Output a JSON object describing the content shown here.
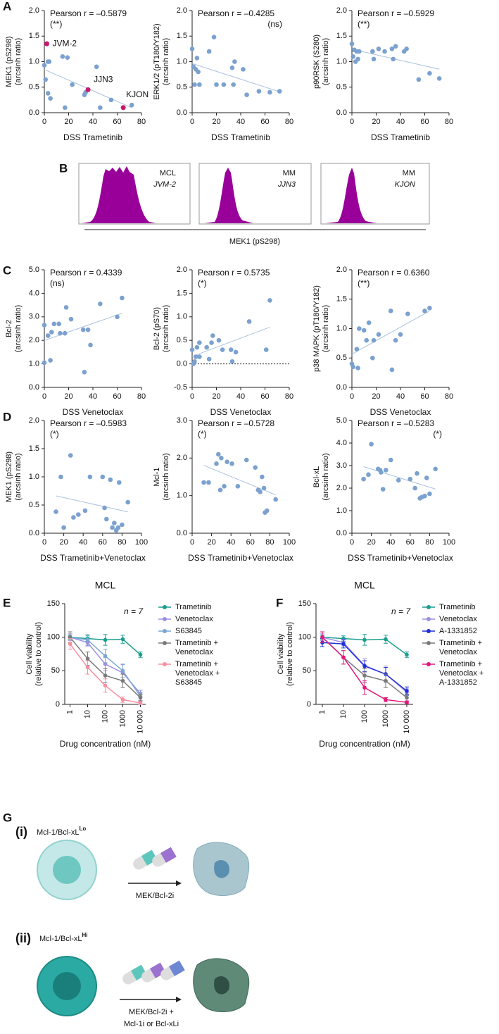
{
  "panel_labels": [
    "A",
    "B",
    "C",
    "D",
    "E",
    "F",
    "G"
  ],
  "chart_data": [
    {
      "type": "scatter",
      "xlabel": "DSS Trametinib",
      "ylabel": [
        "MEK1 (pS298)",
        "(arcsinh ratio)"
      ],
      "annotation": "Pearson r = –0.5879",
      "significance": "(**)",
      "color": "#7ba1cf",
      "x": [
        0,
        1,
        3,
        4,
        3,
        5,
        15,
        19,
        23,
        17,
        33,
        34,
        43,
        46,
        55,
        72
      ],
      "values": [
        0.93,
        0.65,
        1.0,
        1.0,
        0.38,
        0.28,
        1.1,
        1.08,
        0.55,
        0.1,
        0.35,
        0.4,
        0.9,
        0.1,
        0.25,
        0.15
      ],
      "highlights": [
        {
          "label": "JVM-2",
          "x": 2,
          "y": 1.35,
          "color": "#c8186e"
        },
        {
          "label": "JJN3",
          "x": 36,
          "y": 0.45,
          "color": "#c8186e"
        },
        {
          "label": "KJON",
          "x": 65,
          "y": 0.1,
          "color": "#c8186e"
        }
      ],
      "xlim": [
        0,
        80
      ],
      "xticks": [
        0,
        20,
        40,
        60,
        80
      ],
      "ylim": [
        0,
        2
      ],
      "yticks": [
        {
          "value": 0,
          "label": "0.0"
        },
        0.5,
        {
          "value": 1,
          "label": "1.0"
        },
        1.5,
        {
          "value": 2,
          "label": "2.0"
        }
      ]
    },
    {
      "type": "scatter",
      "xlabel": "DSS Trametinib",
      "ylabel": [
        "ERK1/2 (pT180/Y182)",
        "(arcsinh ratio)"
      ],
      "annotation": "Pearson r = –0.4285",
      "significance": "(ns)",
      "color": "#7ba1cf",
      "x": [
        0,
        1,
        2,
        3,
        4,
        5,
        6,
        14,
        18,
        20,
        26,
        33,
        35,
        34,
        42,
        45,
        55,
        64,
        72
      ],
      "values": [
        1.25,
        0.9,
        0.55,
        0.85,
        1.07,
        0.8,
        0.55,
        1.2,
        1.48,
        0.55,
        0.55,
        0.88,
        1.0,
        0.55,
        0.85,
        0.35,
        0.42,
        0.4,
        0.42
      ],
      "xlim": [
        0,
        80
      ],
      "xticks": [
        0,
        20,
        40,
        60,
        80
      ],
      "ylim": [
        0,
        2
      ],
      "yticks": [
        {
          "value": 0,
          "label": "0.0"
        },
        0.5,
        {
          "value": 1,
          "label": "1.0"
        },
        1.5,
        {
          "value": 2,
          "label": "2.0"
        }
      ]
    },
    {
      "type": "scatter",
      "xlabel": "DSS Trametinib",
      "ylabel": [
        "p90RSK (S280)",
        "(arcsinh ratio)"
      ],
      "annotation": "Pearson r = –0.5929",
      "significance": "(**)",
      "color": "#7ba1cf",
      "x": [
        0,
        1,
        2,
        3,
        4,
        5,
        6,
        17,
        18,
        22,
        27,
        33,
        34,
        36,
        43,
        45,
        55,
        64,
        72
      ],
      "values": [
        1.35,
        1.1,
        1.23,
        1.0,
        1.2,
        1.05,
        1.2,
        1.2,
        1.05,
        1.25,
        1.2,
        1.25,
        1.05,
        1.3,
        1.2,
        1.25,
        0.65,
        0.77,
        0.67
      ],
      "xlim": [
        0,
        80
      ],
      "xticks": [
        0,
        20,
        40,
        60,
        80
      ],
      "ylim": [
        0,
        2
      ],
      "yticks": [
        {
          "value": 0,
          "label": "0.0"
        },
        0.5,
        {
          "value": 1,
          "label": "1.0"
        },
        1.5,
        {
          "value": 2,
          "label": "2.0"
        }
      ]
    },
    {
      "type": "scatter",
      "xlabel": "DSS Venetoclax",
      "ylabel": [
        "Bcl-2",
        "(arcsinh ratio)"
      ],
      "annotation": "Pearson r = 0.4339",
      "significance": "(ns)",
      "color": "#7ba1cf",
      "x": [
        0,
        0,
        3,
        5,
        6,
        8,
        12,
        13,
        17,
        18,
        22,
        32,
        33,
        36,
        38,
        46,
        60,
        64
      ],
      "values": [
        2.65,
        1.05,
        2.2,
        1.15,
        2.35,
        2.7,
        2.7,
        2.3,
        2.3,
        3.4,
        2.9,
        2.45,
        0.65,
        2.45,
        1.8,
        3.55,
        3.0,
        3.8
      ],
      "xlim": [
        0,
        80
      ],
      "xticks": [
        0,
        20,
        40,
        60,
        80
      ],
      "ylim": [
        0,
        5
      ],
      "yticks": [
        {
          "value": 0,
          "label": "0.0"
        },
        {
          "value": 1,
          "label": "1.0"
        },
        {
          "value": 2,
          "label": "2.0"
        },
        {
          "value": 3,
          "label": "3.0"
        },
        {
          "value": 4,
          "label": "4.0"
        },
        {
          "value": 5,
          "label": "5.0"
        }
      ]
    },
    {
      "type": "scatter",
      "xlabel": "DSS Venetoclax",
      "ylabel": [
        "Bcl-2 (pS70)",
        "(arcsinh ratio)"
      ],
      "annotation": "Pearson r = 0.5735",
      "significance": "(*)",
      "color": "#7ba1cf",
      "hline": 0,
      "x": [
        0,
        1,
        2,
        3,
        4,
        6,
        6,
        12,
        14,
        16,
        17,
        22,
        25,
        32,
        33,
        36,
        47,
        61,
        64
      ],
      "values": [
        0.3,
        0.0,
        0.05,
        0.15,
        0.35,
        0.45,
        0.15,
        0.35,
        0.1,
        0.45,
        0.6,
        0.5,
        0.3,
        0.3,
        0.05,
        0.25,
        0.9,
        0.3,
        1.35
      ],
      "xlim": [
        0,
        80
      ],
      "xticks": [
        0,
        20,
        40,
        60,
        80
      ],
      "ylim": [
        -0.5,
        2
      ],
      "yticks": [
        -0.5,
        {
          "value": 0,
          "label": "0.0"
        },
        0.5,
        {
          "value": 1,
          "label": "1.0"
        },
        1.5,
        {
          "value": 2,
          "label": "2.0"
        }
      ]
    },
    {
      "type": "scatter",
      "xlabel": "DSS Venetoclax",
      "ylabel": [
        "p38 MAPK (pT180/Y182)",
        "(arcsinh ratio)"
      ],
      "annotation": "Pearson r = 0.6360",
      "significance": "(**)",
      "color": "#7ba1cf",
      "x": [
        0,
        1,
        4,
        5,
        6,
        10,
        12,
        14,
        17,
        18,
        22,
        32,
        33,
        36,
        40,
        46,
        60,
        64
      ],
      "values": [
        0.4,
        0.35,
        0.65,
        0.33,
        1.0,
        0.97,
        0.8,
        1.1,
        0.5,
        0.8,
        0.9,
        1.3,
        0.3,
        0.8,
        0.9,
        1.25,
        1.3,
        1.35
      ],
      "xlim": [
        0,
        80
      ],
      "xticks": [
        0,
        20,
        40,
        60,
        80
      ],
      "ylim": [
        0,
        2
      ],
      "yticks": [
        {
          "value": 0,
          "label": "0.0"
        },
        0.5,
        {
          "value": 1,
          "label": "1.0"
        },
        1.5,
        {
          "value": 2,
          "label": "2.0"
        }
      ]
    },
    {
      "type": "scatter",
      "xlabel": "DSS Trametinib+Venetoclax",
      "ylabel": [
        "MEK1 (pS298)",
        "(arcsinh ratio)"
      ],
      "annotation": "Pearson r = –0.5983",
      "significance": "(*)",
      "color": "#7ba1cf",
      "x": [
        12,
        17,
        20,
        27,
        30,
        35,
        42,
        47,
        60,
        62,
        64,
        68,
        70,
        72,
        74,
        76,
        77,
        80,
        86
      ],
      "values": [
        0.38,
        1.0,
        0.1,
        1.38,
        0.28,
        0.33,
        0.4,
        1.0,
        1.0,
        0.45,
        0.25,
        0.95,
        0.1,
        0.18,
        0.05,
        0.1,
        0.9,
        0.15,
        0.55
      ],
      "xlim": [
        0,
        100
      ],
      "xticks": [
        0,
        20,
        40,
        60,
        80,
        100
      ],
      "ylim": [
        0,
        2
      ],
      "yticks": [
        {
          "value": 0,
          "label": "0.0"
        },
        0.5,
        {
          "value": 1,
          "label": "1.0"
        },
        1.5,
        {
          "value": 2,
          "label": "2.0"
        }
      ]
    },
    {
      "type": "scatter",
      "xlabel": "DSS Trametinib+Venetoclax",
      "ylabel": [
        "Mcl-1",
        "(arcsinh ratio)"
      ],
      "annotation": "Pearson r = –0.5728",
      "significance": "(*)",
      "color": "#7ba1cf",
      "x": [
        12,
        17,
        25,
        27,
        29,
        30,
        33,
        36,
        41,
        47,
        56,
        65,
        68,
        70,
        72,
        74,
        75,
        77,
        86
      ],
      "values": [
        1.35,
        1.35,
        1.85,
        2.1,
        1.15,
        2.0,
        1.25,
        1.9,
        1.85,
        1.25,
        1.95,
        1.75,
        1.15,
        1.1,
        1.5,
        1.2,
        0.55,
        0.6,
        0.9
      ],
      "xlim": [
        0,
        100
      ],
      "xticks": [
        0,
        20,
        40,
        60,
        80,
        100
      ],
      "ylim": [
        0,
        3
      ],
      "yticks": [
        {
          "value": 0,
          "label": "0.0"
        },
        {
          "value": 1,
          "label": "1.0"
        },
        {
          "value": 2,
          "label": "2.0"
        },
        {
          "value": 3,
          "label": "3.0"
        }
      ]
    },
    {
      "type": "scatter",
      "xlabel": "DSS Trametinib+Venetoclax",
      "ylabel": [
        "Bcl-xL",
        "(arcsinh ratio)"
      ],
      "annotation": "Pearson r = –0.5283",
      "significance": "(*)",
      "color": "#7ba1cf",
      "x": [
        12,
        17,
        20,
        27,
        29,
        30,
        32,
        35,
        40,
        48,
        60,
        65,
        67,
        70,
        72,
        75,
        77,
        80,
        86
      ],
      "values": [
        2.4,
        2.6,
        3.95,
        2.85,
        2.8,
        2.7,
        1.95,
        2.8,
        3.25,
        2.35,
        2.4,
        2.0,
        2.65,
        1.55,
        1.6,
        1.65,
        2.45,
        1.75,
        2.85
      ],
      "xlim": [
        0,
        100
      ],
      "xticks": [
        0,
        20,
        40,
        60,
        80,
        100
      ],
      "ylim": [
        0,
        5
      ],
      "yticks": [
        {
          "value": 0,
          "label": "0.0"
        },
        {
          "value": 1,
          "label": "1.0"
        },
        {
          "value": 2,
          "label": "2.0"
        },
        {
          "value": 3,
          "label": "3.0"
        },
        {
          "value": 4,
          "label": "4.0"
        },
        {
          "value": 5,
          "label": "5.0"
        }
      ]
    },
    {
      "type": "line",
      "title": "MCL",
      "annotation": "n = 7",
      "xlabel": "Drug concentration (nM)",
      "ylabel": [
        "Cell viability",
        "(relative to control)"
      ],
      "x": [
        1,
        10,
        100,
        1000,
        10000
      ],
      "xlog": true,
      "xlim": [
        0.5,
        20000
      ],
      "xticks": [
        1,
        10,
        100,
        1000,
        {
          "value": 10000,
          "label": "10 000"
        }
      ],
      "ylim": [
        0,
        150
      ],
      "yticks": [
        0,
        50,
        100,
        150
      ],
      "series": [
        {
          "name": "Trametinib",
          "color": "#1a9e8f",
          "values": [
            100,
            98,
            96,
            97,
            74
          ],
          "errors": [
            3,
            4,
            8,
            6,
            4
          ]
        },
        {
          "name": "Venetoclax",
          "color": "#9b8fe0",
          "values": [
            100,
            92,
            60,
            47,
            16
          ],
          "errors": [
            5,
            5,
            10,
            12,
            5
          ]
        },
        {
          "name": "S63845",
          "color": "#7ba6d4",
          "values": [
            100,
            96,
            72,
            50,
            12
          ],
          "errors": [
            8,
            8,
            10,
            10,
            6
          ]
        },
        {
          "name": "Trametinib + Venetoclax",
          "color": "#7a7a7a",
          "values": [
            100,
            68,
            43,
            35,
            10
          ],
          "errors": [
            8,
            10,
            10,
            10,
            5
          ]
        },
        {
          "name": "Trametinib + Venetoclax + S63845",
          "color": "#f78fa0",
          "values": [
            90,
            55,
            28,
            7,
            2
          ],
          "errors": [
            8,
            10,
            10,
            4,
            2
          ]
        }
      ]
    },
    {
      "type": "line",
      "title": "MCL",
      "annotation": "n = 7",
      "xlabel": "Drug concentration (nM)",
      "ylabel": [
        "Cell viability",
        "(relative to control)"
      ],
      "x": [
        1,
        10,
        100,
        1000,
        10000
      ],
      "xlog": true,
      "xlim": [
        0.5,
        20000
      ],
      "xticks": [
        1,
        10,
        100,
        1000,
        {
          "value": 10000,
          "label": "10 000"
        }
      ],
      "ylim": [
        0,
        150
      ],
      "yticks": [
        0,
        50,
        100,
        150
      ],
      "series": [
        {
          "name": "Trametinib",
          "color": "#1a9e8f",
          "values": [
            100,
            98,
            96,
            97,
            74
          ],
          "errors": [
            3,
            4,
            8,
            6,
            4
          ]
        },
        {
          "name": "Venetoclax",
          "color": "#9b8fe0",
          "values": [
            100,
            92,
            58,
            45,
            18
          ],
          "errors": [
            5,
            5,
            10,
            12,
            5
          ]
        },
        {
          "name": "A-1331852",
          "color": "#1f2fd8",
          "values": [
            92,
            90,
            57,
            45,
            20
          ],
          "errors": [
            6,
            6,
            8,
            10,
            6
          ]
        },
        {
          "name": "Trametinib + Venetoclax",
          "color": "#7a7a7a",
          "values": [
            100,
            70,
            43,
            35,
            10
          ],
          "errors": [
            8,
            10,
            10,
            10,
            5
          ]
        },
        {
          "name": "Trametinib + Venetoclax + A-1331852",
          "color": "#e0197d",
          "values": [
            100,
            70,
            25,
            7,
            3
          ],
          "errors": [
            8,
            10,
            10,
            3,
            2
          ]
        }
      ]
    }
  ],
  "panel_b": {
    "xlabel": "MEK1 (pS298)",
    "samples": [
      {
        "group": "MCL",
        "cell_line": "JVM-2"
      },
      {
        "group": "MM",
        "cell_line": "JJN3"
      },
      {
        "group": "MM",
        "cell_line": "KJON"
      }
    ]
  },
  "panel_g": {
    "rows": [
      {
        "label": "(i)",
        "marker": "Mcl-1/Bcl-xL",
        "marker_level": "Lo",
        "treatment": [
          "MEK/Bcl-2i"
        ]
      },
      {
        "label": "(ii)",
        "marker": "Mcl-1/Bcl-xL",
        "marker_level": "Hi",
        "treatment": [
          "MEK/Bcl-2i +",
          "Mcl-1i or Bcl-xLi"
        ]
      }
    ]
  }
}
